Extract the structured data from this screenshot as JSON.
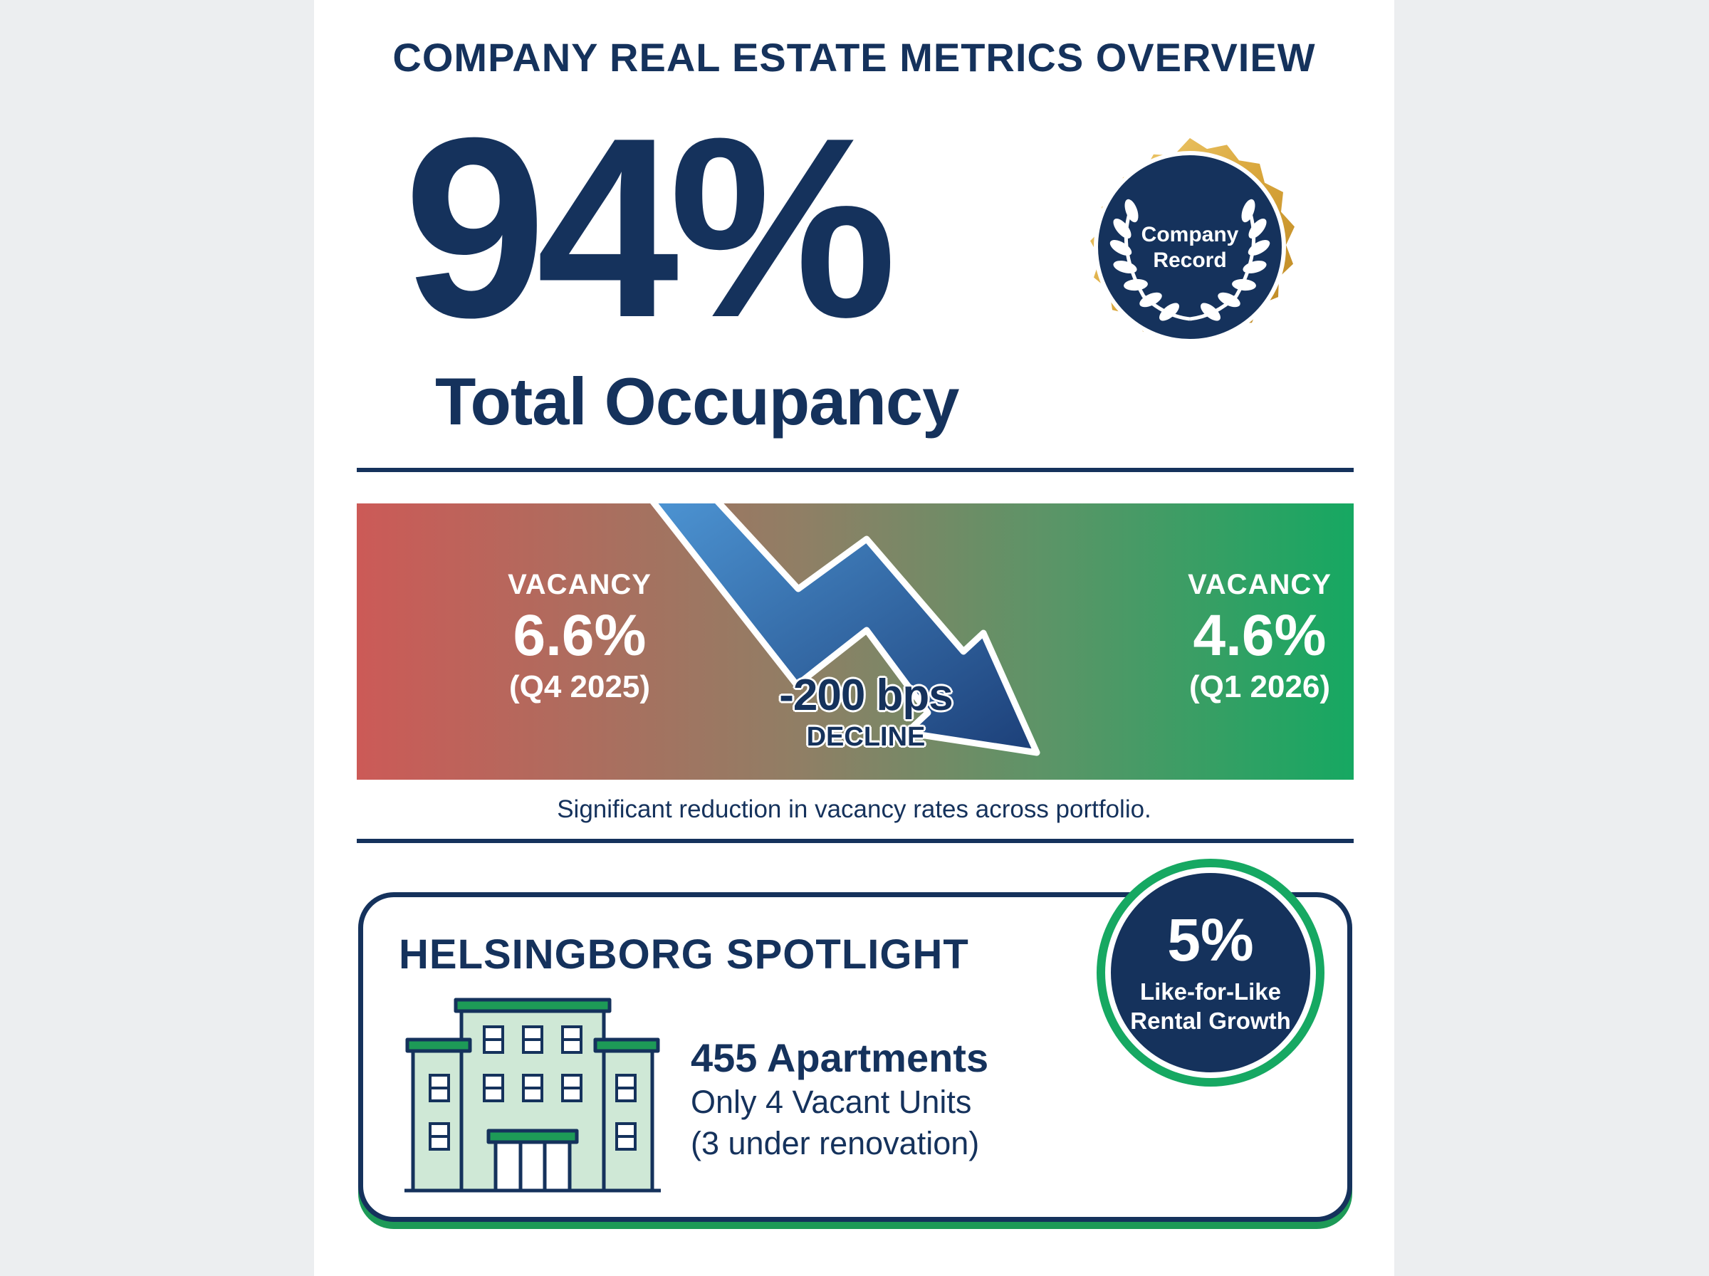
{
  "header": {
    "title": "COMPANY REAL ESTATE METRICS OVERVIEW"
  },
  "hero": {
    "value": "94%",
    "label": "Total Occupancy"
  },
  "seal": {
    "line1": "Company",
    "line2": "Record",
    "icon": "laurel-wreath-icon"
  },
  "vacancy": {
    "before": {
      "label": "VACANCY",
      "value": "6.6%",
      "period": "(Q4 2025)"
    },
    "after": {
      "label": "VACANCY",
      "value": "4.6%",
      "period": "(Q1 2026)"
    },
    "change": {
      "value": "-200 bps",
      "label": "DECLINE"
    },
    "caption": "Significant reduction in vacancy rates across portfolio."
  },
  "spotlight": {
    "title": "HELSINGBORG SPOTLIGHT",
    "apartments": "455 Apartments",
    "vacant": "Only 4 Vacant Units",
    "renovation": "(3 under renovation)",
    "growth": {
      "value": "5%",
      "label": "Like-for-Like Rental Growth"
    }
  },
  "colors": {
    "navy": "#15325c",
    "green": "#16a862",
    "red": "#cc5a57",
    "gold": "#d9a63b",
    "arrow_blue": "#3f82c4"
  }
}
